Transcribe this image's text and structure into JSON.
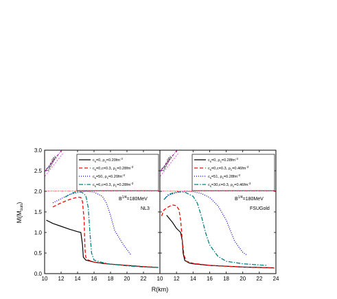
{
  "chart_data": {
    "type": "line",
    "xlabel": "R(km)",
    "ylabel": "M(M",
    "ylabel_sub": "sun",
    "ylabel_close": ")",
    "ylim": [
      0.0,
      3.0
    ],
    "yticks": [
      "0.0",
      "0.5",
      "1.0",
      "1.5",
      "2.0",
      "2.5",
      "3.0"
    ],
    "reference_line": {
      "y": 2.01,
      "style": "dotted",
      "color": "#ff0000"
    },
    "colors": {
      "c0": "#000000",
      "c1": "#ff0000",
      "c2": "#0000cc",
      "c3": "#008080",
      "causality": "#cc00cc"
    },
    "panels": [
      {
        "xlim": [
          10,
          24
        ],
        "xticks": [
          "10",
          "12",
          "14",
          "16",
          "18",
          "20",
          "22",
          ""
        ],
        "annotation_B": "B",
        "annotation_B_sup": "1/4",
        "annotation_B_rest": "=180MeV",
        "model": "NL3",
        "causality_label": "Causality",
        "series": [
          {
            "name": "c_s=0, ρ_c=0.20fm⁻³",
            "legend": [
              "c",
              "s",
              "=0, ",
              "ρ",
              "c",
              "=0.20fm",
              "-3"
            ],
            "style": "solid",
            "x": [
              10.2,
              11.0,
              12.0,
              13.0,
              14.0,
              14.4,
              14.6,
              14.7,
              15.0,
              16,
              17,
              18,
              20,
              22,
              23.8
            ],
            "y": [
              1.3,
              1.22,
              1.15,
              1.08,
              1.02,
              1.0,
              0.7,
              0.4,
              0.33,
              0.28,
              0.25,
              0.23,
              0.2,
              0.17,
              0.15
            ]
          },
          {
            "name": "c_s=0,c=0.3, ρ_c=0.28fm⁻³",
            "legend": [
              "c",
              "s",
              "=0,c=0.3, ",
              "ρ",
              "c",
              "=0.28fm",
              "-3"
            ],
            "style": "dash",
            "x": [
              11.0,
              12.0,
              13.0,
              14.0,
              14.4,
              14.6,
              14.8,
              14.9,
              15.0,
              15.3,
              16,
              18,
              20,
              22,
              23.8
            ],
            "y": [
              1.62,
              1.72,
              1.8,
              1.86,
              1.85,
              1.75,
              1.3,
              0.6,
              0.4,
              0.33,
              0.28,
              0.23,
              0.2,
              0.17,
              0.15
            ]
          },
          {
            "name": "c_s=50, ρ_c=0.20fm⁻³",
            "legend": [
              "c",
              "s",
              "=50, ",
              "ρ",
              "c",
              "=0.20fm",
              "-3"
            ],
            "style": "dot",
            "x": [
              11.0,
              12.0,
              13.0,
              14.0,
              15.0,
              16.0,
              17.0,
              17.5,
              18.0,
              18.5,
              19.5,
              20.5
            ],
            "y": [
              1.72,
              1.82,
              1.92,
              1.97,
              2.0,
              1.98,
              1.88,
              1.72,
              1.42,
              1.05,
              0.72,
              0.45
            ]
          },
          {
            "name": "c_s=6,c=0.3, ρ_c=0.28fm⁻³",
            "legend": [
              "c",
              "s",
              "=6,c=0.3, ",
              "ρ",
              "c",
              "=0.28fm",
              "-3"
            ],
            "style": "dashdot",
            "x": [
              12.5,
              13.0,
              13.5,
              14.0,
              14.5,
              15.0,
              15.3,
              15.5,
              15.7,
              16,
              17,
              18,
              20,
              22,
              23.8
            ],
            "y": [
              1.86,
              1.92,
              1.97,
              2.0,
              1.98,
              1.9,
              1.6,
              1.0,
              0.5,
              0.33,
              0.27,
              0.23,
              0.19,
              0.16,
              0.15
            ]
          }
        ]
      },
      {
        "xlim": [
          10,
          24
        ],
        "xticks": [
          "10",
          "12",
          "14",
          "16",
          "18",
          "20",
          "22",
          "24"
        ],
        "annotation_B": "B",
        "annotation_B_sup": "1/4",
        "annotation_B_rest": "=180MeV",
        "model": "FSUGold",
        "causality_label": "Causality",
        "series": [
          {
            "name": "c_s=0, ρ_c=0.28fm⁻³",
            "legend": [
              "c",
              "s",
              "=0, ",
              "ρ",
              "c",
              "=0.28fm",
              "-3"
            ],
            "style": "solid",
            "x": [
              10.8,
              11.5,
              12.0,
              12.5,
              12.7,
              12.8,
              13.0,
              13.5,
              14,
              16,
              18,
              20,
              22,
              23.8
            ],
            "y": [
              1.42,
              1.25,
              1.1,
              1.0,
              0.8,
              0.5,
              0.32,
              0.26,
              0.24,
              0.2,
              0.18,
              0.16,
              0.15,
              0.14
            ]
          },
          {
            "name": "c_s=0,c=0.3, ρ_c=0.46fm⁻³",
            "legend": [
              "c",
              "s",
              "=0,c=0.3, ",
              "ρ",
              "c",
              "=0.46fm",
              "-3"
            ],
            "style": "dash",
            "x": [
              10.2,
              10.5,
              11.0,
              11.5,
              12.0,
              12.3,
              12.5,
              12.7,
              12.9,
              13.2,
              14,
              16,
              18,
              20,
              22,
              23.8
            ],
            "y": [
              1.4,
              1.55,
              1.62,
              1.67,
              1.65,
              1.55,
              1.3,
              0.8,
              0.45,
              0.3,
              0.25,
              0.2,
              0.18,
              0.16,
              0.15,
              0.14
            ]
          },
          {
            "name": "c_s=51, ρ_c=0.28fm⁻³",
            "legend": [
              "c",
              "s",
              "=51, ",
              "ρ",
              "c",
              "=0.28fm",
              "-3"
            ],
            "style": "dot",
            "x": [
              10.5,
              11.0,
              12.0,
              13.0,
              14.0,
              15.0,
              16.0,
              17.0,
              18.0,
              18.5,
              19.0,
              19.5,
              20.0,
              20.5
            ],
            "y": [
              1.8,
              1.9,
              1.97,
              2.0,
              1.99,
              1.95,
              1.85,
              1.65,
              1.3,
              1.05,
              0.8,
              0.65,
              0.52,
              0.45
            ]
          },
          {
            "name": "c_s=30,c=0.3, ρ_c=0.46fm⁻³",
            "legend": [
              "c",
              "s",
              "=30,c=0.3, ",
              "ρ",
              "c",
              "=0.46fm",
              "-3"
            ],
            "style": "dashdot",
            "x": [
              10.5,
              11.0,
              12.0,
              13.0,
              14.0,
              14.5,
              15.0,
              15.5,
              16.0,
              17.0,
              18.0,
              20,
              22,
              23.0
            ],
            "y": [
              1.8,
              1.92,
              1.99,
              1.98,
              1.88,
              1.72,
              1.4,
              1.0,
              0.7,
              0.42,
              0.3,
              0.24,
              0.21,
              0.2
            ]
          }
        ]
      }
    ]
  }
}
